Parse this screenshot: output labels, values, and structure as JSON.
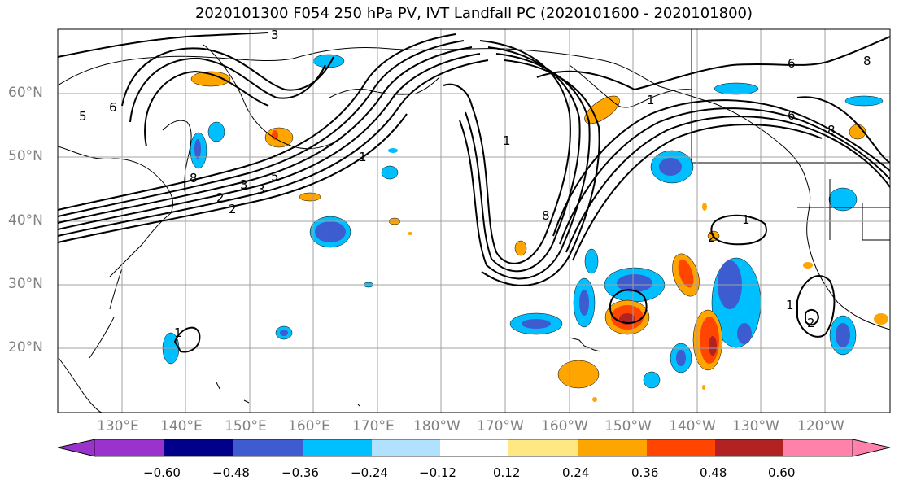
{
  "title": "2020101300 F054 250 hPa PV, IVT Landfall PC (2020101600 - 2020101800)",
  "lat_labels": [
    "60°N",
    "50°N",
    "40°N",
    "30°N",
    "20°N"
  ],
  "lon_labels": [
    "130°E",
    "140°E",
    "150°E",
    "160°E",
    "170°E",
    "180°W",
    "170°W",
    "160°W",
    "150°W",
    "140°W",
    "130°W",
    "120°W"
  ],
  "colorbar": {
    "ticks": [
      "−0.60",
      "−0.48",
      "−0.36",
      "−0.24",
      "−0.12",
      "0.12",
      "0.24",
      "0.36",
      "0.48",
      "0.60"
    ],
    "colors": [
      "#9933cc",
      "#00008b",
      "#3d5ccf",
      "#00bfff",
      "#b0e2ff",
      "#ffffff",
      "#ffe882",
      "#ffa500",
      "#ff4500",
      "#b22222",
      "#ff82ab"
    ]
  },
  "contour_labels": [
    "5",
    "6",
    "3",
    "8",
    "5",
    "2",
    "1",
    "3",
    "2",
    "3",
    "1",
    "8",
    "6",
    "8",
    "1",
    "1",
    "2",
    "1",
    "2",
    "6",
    "8",
    "1"
  ]
}
